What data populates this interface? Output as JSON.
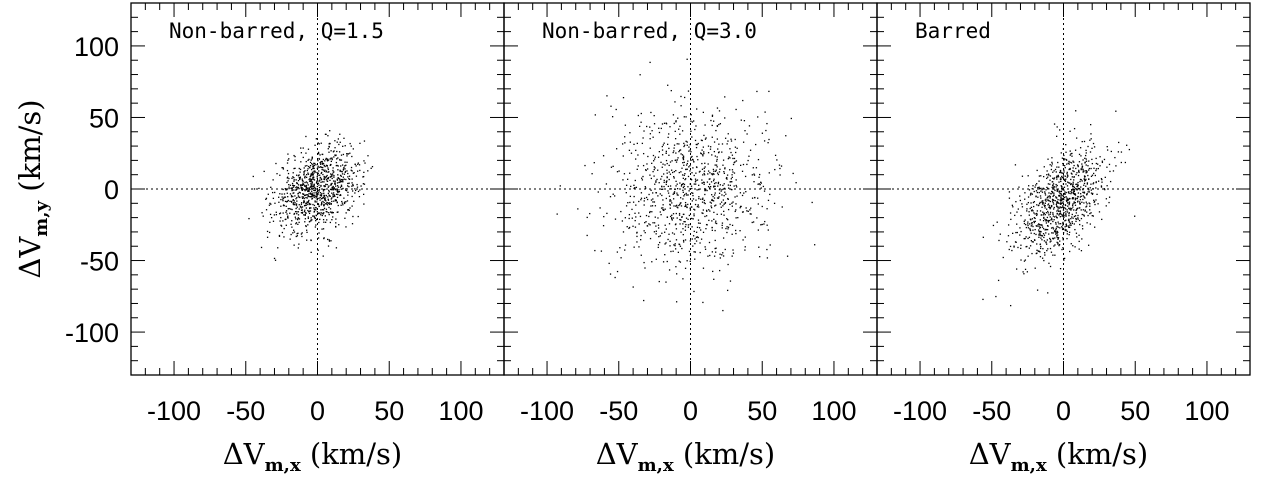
{
  "chart_data": [
    {
      "type": "scatter",
      "title": "Non-barred, Q=1.5",
      "xlabel": "ΔVm,x (km/s)",
      "ylabel": "ΔVm,y (km/s)",
      "xlim": [
        -130,
        130
      ],
      "ylim": [
        -130,
        130
      ],
      "xticks": [
        "-100",
        "-50",
        "0",
        "50",
        "100"
      ],
      "yticks": [
        "100",
        "50",
        "0",
        "-50",
        "-100"
      ],
      "reference_lines": {
        "x": 0,
        "y": 0,
        "style": "dotted"
      },
      "distribution": {
        "n_points": 1000,
        "center_x": 0,
        "center_y": 0,
        "spread_x": 15,
        "spread_y": 15,
        "correlation": 0.3
      }
    },
    {
      "type": "scatter",
      "title": "Non-barred, Q=3.0",
      "xlabel": "ΔVm,x (km/s)",
      "ylabel": "",
      "xlim": [
        -130,
        130
      ],
      "ylim": [
        -130,
        130
      ],
      "xticks": [
        "-100",
        "-50",
        "0",
        "50",
        "100"
      ],
      "yticks": [],
      "reference_lines": {
        "x": 0,
        "y": 0,
        "style": "dotted"
      },
      "distribution": {
        "n_points": 1000,
        "center_x": 0,
        "center_y": 0,
        "spread_x": 27,
        "spread_y": 28,
        "correlation": 0.0
      }
    },
    {
      "type": "scatter",
      "title": "Barred",
      "xlabel": "ΔVm,x (km/s)",
      "ylabel": "",
      "xlim": [
        -130,
        130
      ],
      "ylim": [
        -130,
        130
      ],
      "xticks": [
        "-100",
        "-50",
        "0",
        "50",
        "100"
      ],
      "yticks": [],
      "reference_lines": {
        "x": 0,
        "y": 0,
        "style": "dotted"
      },
      "distribution": {
        "n_points": 1000,
        "center_x": -2,
        "center_y": -10,
        "spread_x": 16,
        "spread_y": 20,
        "correlation": 0.5
      }
    }
  ]
}
